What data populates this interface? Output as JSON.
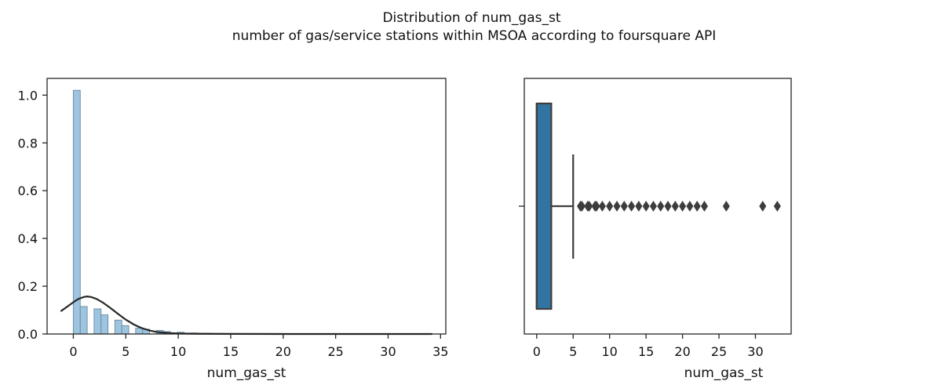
{
  "figure": {
    "title_line1": "Distribution of num_gas_st",
    "title_line2": "number of gas/service stations within MSOA according to foursquare API"
  },
  "colors": {
    "hist_fill": "#9ec5e0",
    "hist_stroke": "#6f8fa6",
    "kde_line": "#262626",
    "box_fill": "#3274a1",
    "box_edge": "#3d3d3d",
    "outlier": "#3d3d3d",
    "axes": "#262626"
  },
  "chart_data": [
    {
      "type": "bar",
      "subtype": "histogram-with-kde",
      "xlabel": "num_gas_st",
      "ylabel": "",
      "xlim": [
        -2.5,
        35.5
      ],
      "ylim": [
        0,
        1.07
      ],
      "xticks": [
        "0",
        "5",
        "10",
        "15",
        "20",
        "25",
        "30",
        "35"
      ],
      "yticks": [
        "0.0",
        "0.2",
        "0.4",
        "0.6",
        "0.8",
        "1.0"
      ],
      "bin_width": 0.66,
      "bins": [
        {
          "x0": 0.0,
          "value": 1.02
        },
        {
          "x0": 0.66,
          "value": 0.115
        },
        {
          "x0": 1.98,
          "value": 0.105
        },
        {
          "x0": 2.64,
          "value": 0.08
        },
        {
          "x0": 3.96,
          "value": 0.058
        },
        {
          "x0": 4.62,
          "value": 0.035
        },
        {
          "x0": 5.94,
          "value": 0.025
        },
        {
          "x0": 6.6,
          "value": 0.02
        },
        {
          "x0": 7.92,
          "value": 0.015
        },
        {
          "x0": 8.58,
          "value": 0.01
        },
        {
          "x0": 9.9,
          "value": 0.007
        },
        {
          "x0": 11.22,
          "value": 0.004
        },
        {
          "x0": 11.88,
          "value": 0.003
        },
        {
          "x0": 12.54,
          "value": 0.003
        },
        {
          "x0": 13.86,
          "value": 0.002
        },
        {
          "x0": 15.18,
          "value": 0.0015
        },
        {
          "x0": 17.16,
          "value": 0.001
        },
        {
          "x0": 19.8,
          "value": 0.001
        },
        {
          "x0": 22.44,
          "value": 0.001
        },
        {
          "x0": 25.74,
          "value": 0.001
        },
        {
          "x0": 30.36,
          "value": 0.0008
        },
        {
          "x0": 33.0,
          "value": 0.0008
        }
      ],
      "kde": {
        "x": [
          -1.2,
          -0.5,
          0,
          0.5,
          1.0,
          1.3,
          1.7,
          2.2,
          2.8,
          3.5,
          4.2,
          5.0,
          5.8,
          6.5,
          7.3,
          8.0,
          9.0,
          10.0,
          12.0,
          15.0,
          20.0,
          25.0,
          30.0,
          34.2
        ],
        "y": [
          0.095,
          0.117,
          0.133,
          0.147,
          0.155,
          0.157,
          0.155,
          0.147,
          0.132,
          0.11,
          0.086,
          0.06,
          0.039,
          0.025,
          0.014,
          0.008,
          0.004,
          0.002,
          0.0008,
          0.0003,
          0.0001,
          0.0001,
          0.0001,
          0.0001
        ]
      }
    },
    {
      "type": "box",
      "xlabel": "num_gas_st",
      "ylabel": "",
      "xlim": [
        -1.7,
        34.9
      ],
      "xticks": [
        "0",
        "5",
        "10",
        "15",
        "20",
        "25",
        "30"
      ],
      "box": {
        "q1": 0,
        "median": 0,
        "q3": 2,
        "whisker_low": 0,
        "whisker_high": 5
      },
      "outliers": [
        6,
        6.2,
        7,
        7.2,
        8,
        8.2,
        9,
        10,
        11,
        12,
        13,
        14,
        15,
        16,
        17,
        18,
        19,
        20,
        21,
        22,
        23,
        26,
        31,
        33
      ]
    }
  ]
}
